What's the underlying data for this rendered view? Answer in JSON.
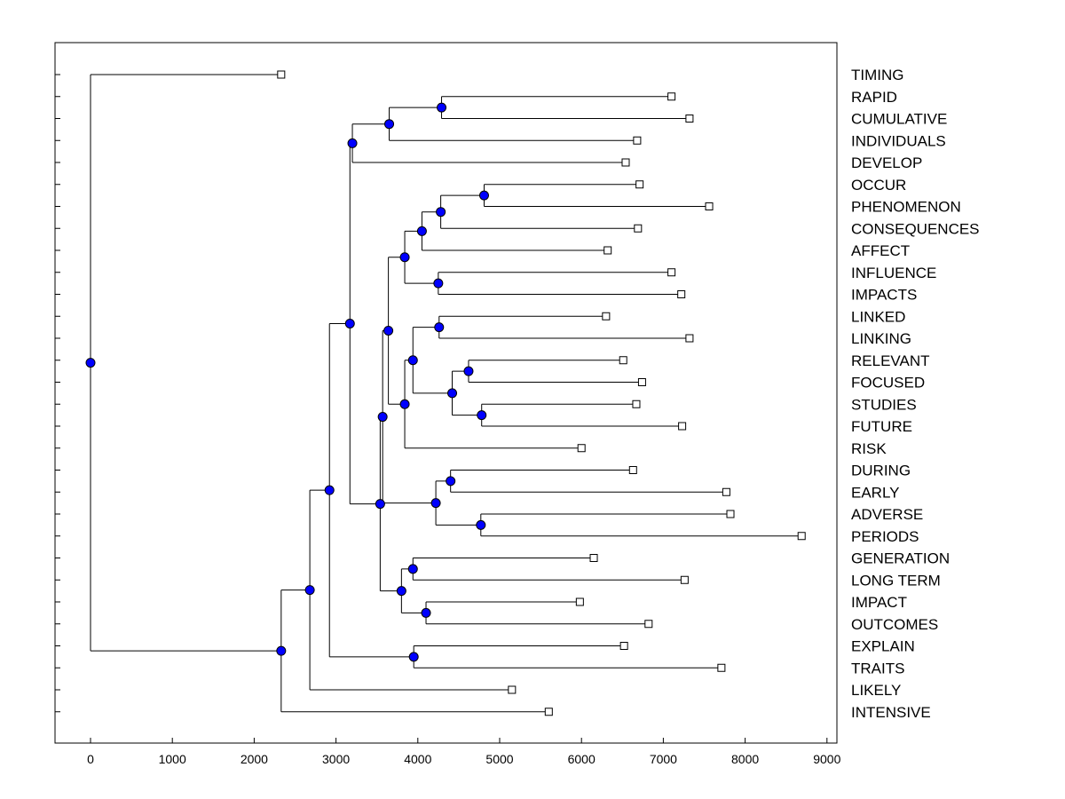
{
  "chart_data": {
    "type": "dendrogram",
    "title": "",
    "xlabel": "",
    "ylabel": "",
    "xlim": [
      -430,
      9120
    ],
    "x_ticks": [
      "0",
      "1000",
      "2000",
      "3000",
      "4000",
      "5000",
      "6000",
      "7000",
      "8000",
      "9000"
    ],
    "leaves": [
      {
        "label": "TIMING",
        "value": 2330
      },
      {
        "label": "RAPID",
        "value": 7100
      },
      {
        "label": "CUMULATIVE",
        "value": 7320
      },
      {
        "label": "INDIVIDUALS",
        "value": 6680
      },
      {
        "label": "DEVELOP",
        "value": 6540
      },
      {
        "label": "OCCUR",
        "value": 6710
      },
      {
        "label": "PHENOMENON",
        "value": 7560
      },
      {
        "label": "CONSEQUENCES",
        "value": 6690
      },
      {
        "label": "AFFECT",
        "value": 6320
      },
      {
        "label": "INFLUENCE",
        "value": 7100
      },
      {
        "label": "IMPACTS",
        "value": 7220
      },
      {
        "label": "LINKED",
        "value": 6300
      },
      {
        "label": "LINKING",
        "value": 7320
      },
      {
        "label": "RELEVANT",
        "value": 6510
      },
      {
        "label": "FOCUSED",
        "value": 6740
      },
      {
        "label": "STUDIES",
        "value": 6670
      },
      {
        "label": "FUTURE",
        "value": 7230
      },
      {
        "label": "RISK",
        "value": 6000
      },
      {
        "label": "DURING",
        "value": 6630
      },
      {
        "label": "EARLY",
        "value": 7770
      },
      {
        "label": "ADVERSE",
        "value": 7820
      },
      {
        "label": "PERIODS",
        "value": 8690
      },
      {
        "label": "GENERATION",
        "value": 6150
      },
      {
        "label": "LONG TERM",
        "value": 7260
      },
      {
        "label": "IMPACT",
        "value": 5980
      },
      {
        "label": "OUTCOMES",
        "value": 6820
      },
      {
        "label": "EXPLAIN",
        "value": 6520
      },
      {
        "label": "TRAITS",
        "value": 7710
      },
      {
        "label": "LIKELY",
        "value": 5150
      },
      {
        "label": "INTENSIVE",
        "value": 5600
      }
    ],
    "merges": [
      {
        "id": "A",
        "value": 4290,
        "children": [
          "RAPID",
          "CUMULATIVE"
        ]
      },
      {
        "id": "B",
        "value": 3650,
        "children": [
          "A",
          "INDIVIDUALS"
        ]
      },
      {
        "id": "C",
        "value": 3200,
        "children": [
          "B",
          "DEVELOP"
        ]
      },
      {
        "id": "D",
        "value": 4810,
        "children": [
          "OCCUR",
          "PHENOMENON"
        ]
      },
      {
        "id": "E",
        "value": 4280,
        "children": [
          "D",
          "CONSEQUENCES"
        ]
      },
      {
        "id": "F",
        "value": 4050,
        "children": [
          "E",
          "AFFECT"
        ]
      },
      {
        "id": "G",
        "value": 4250,
        "children": [
          "INFLUENCE",
          "IMPACTS"
        ]
      },
      {
        "id": "H",
        "value": 3840,
        "children": [
          "F",
          "G"
        ]
      },
      {
        "id": "I",
        "value": 4260,
        "children": [
          "LINKED",
          "LINKING"
        ]
      },
      {
        "id": "J",
        "value": 4620,
        "children": [
          "RELEVANT",
          "FOCUSED"
        ]
      },
      {
        "id": "K",
        "value": 4780,
        "children": [
          "STUDIES",
          "FUTURE"
        ]
      },
      {
        "id": "L",
        "value": 4420,
        "children": [
          "J",
          "K"
        ]
      },
      {
        "id": "M",
        "value": 3940,
        "children": [
          "I",
          "L"
        ]
      },
      {
        "id": "N",
        "value": 3840,
        "children": [
          "M",
          "RISK"
        ]
      },
      {
        "id": "O",
        "value": 3640,
        "children": [
          "H",
          "N"
        ]
      },
      {
        "id": "P",
        "value": 4400,
        "children": [
          "DURING",
          "EARLY"
        ]
      },
      {
        "id": "Q",
        "value": 4770,
        "children": [
          "ADVERSE",
          "PERIODS"
        ]
      },
      {
        "id": "R",
        "value": 4220,
        "children": [
          "P",
          "Q"
        ]
      },
      {
        "id": "S",
        "value": 3940,
        "children": [
          "GENERATION",
          "LONG TERM"
        ]
      },
      {
        "id": "T",
        "value": 4100,
        "children": [
          "IMPACT",
          "OUTCOMES"
        ]
      },
      {
        "id": "U",
        "value": 3800,
        "children": [
          "S",
          "T"
        ]
      },
      {
        "id": "V",
        "value": 3570,
        "children": [
          "O",
          "R"
        ]
      },
      {
        "id": "W",
        "value": 3540,
        "children": [
          "V",
          "U"
        ]
      },
      {
        "id": "X",
        "value": 3170,
        "children": [
          "C",
          "W"
        ]
      },
      {
        "id": "Y",
        "value": 3950,
        "children": [
          "EXPLAIN",
          "TRAITS"
        ]
      },
      {
        "id": "Z",
        "value": 2920,
        "children": [
          "X",
          "Y"
        ]
      },
      {
        "id": "AA",
        "value": 2680,
        "children": [
          "Z",
          "LIKELY"
        ]
      },
      {
        "id": "AB",
        "value": 2330,
        "children": [
          "AA",
          "INTENSIVE"
        ]
      },
      {
        "id": "ROOT",
        "value": 0,
        "children": [
          "TIMING",
          "AB"
        ]
      }
    ]
  }
}
